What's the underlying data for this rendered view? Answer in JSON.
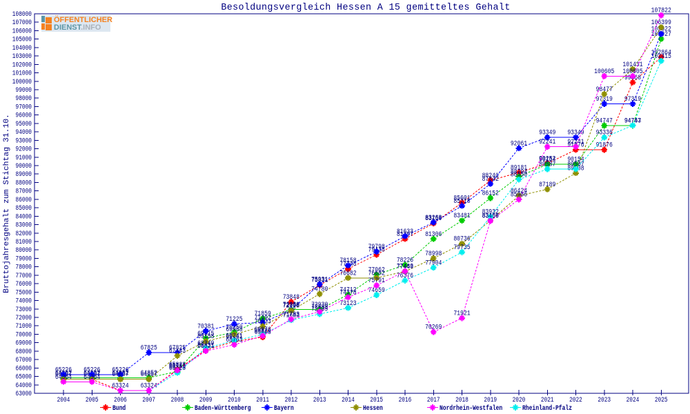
{
  "chart_data": {
    "type": "line",
    "title": "Besoldungsvergleich Hessen A 15 gemitteltes Gehalt",
    "ylabel": "Bruttojahresgehalt zum Stichtag 31.10.",
    "x": [
      2004,
      2005,
      2006,
      2007,
      2008,
      2009,
      2010,
      2011,
      2012,
      2013,
      2014,
      2015,
      2016,
      2017,
      2018,
      2019,
      2020,
      2021,
      2022,
      2023,
      2024,
      2025
    ],
    "ylim": [
      63000,
      108000
    ],
    "ytick_step": 1000,
    "grid": false,
    "legend_position": "bottom",
    "series": [
      {
        "name": "Bund",
        "color": "#ff0000",
        "values": [
          64657,
          64657,
          63324,
          63324,
          65823,
          68131,
          69141,
          69668,
          73848,
          75831,
          77748,
          79438,
          81297,
          83150,
          85601,
          88240,
          89181,
          90252,
          91876,
          91876,
          99868,
          102864
        ]
      },
      {
        "name": "Baden-Württemberg",
        "color": "#00cc00",
        "values": [
          64852,
          64852,
          64852,
          64852,
          65583,
          69515,
          70250,
          71859,
          72930,
          72930,
          74712,
          77062,
          78226,
          81306,
          83481,
          86152,
          88704,
          90154,
          90154,
          94747,
          94747,
          105027
        ]
      },
      {
        "name": "Bayern",
        "color": "#0000ff",
        "values": [
          65226,
          65226,
          65226,
          67825,
          67825,
          70381,
          71225,
          71402,
          72856,
          75931,
          78158,
          79798,
          81633,
          83268,
          85218,
          87842,
          92061,
          93349,
          93349,
          97319,
          97319,
          105622
        ]
      },
      {
        "name": "Hessen",
        "color": "#8f8f00",
        "values": [
          64657,
          64657,
          64657,
          64657,
          67443,
          69158,
          69988,
          70933,
          72798,
          74780,
          76682,
          76682,
          77449,
          78998,
          80736,
          83486,
          86424,
          87189,
          89108,
          98477,
          101431,
          106399
        ]
      },
      {
        "name": "Nordrhein-Westfalen",
        "color": "#ff00ff",
        "values": [
          64364,
          64364,
          63324,
          63324,
          65712,
          68021,
          68761,
          69826,
          71783,
          72689,
          74378,
          75791,
          77483,
          70269,
          71921,
          83450,
          85986,
          92241,
          92241,
          100605,
          100605,
          107822
        ]
      },
      {
        "name": "Rheinland-Pfalz",
        "color": "#00eeee",
        "values": [
          64364,
          64364,
          63324,
          63324,
          65423,
          68349,
          69241,
          69976,
          71683,
          72399,
          73123,
          74659,
          76376,
          77904,
          79735,
          83932,
          88350,
          89587,
          89587,
          93336,
          94763,
          102415
        ]
      }
    ],
    "draw_order": [
      0,
      1,
      2,
      3,
      5,
      4
    ],
    "legend": [
      {
        "series": 0,
        "x": 153
      },
      {
        "series": 1,
        "x": 272
      },
      {
        "series": 2,
        "x": 387
      },
      {
        "series": 3,
        "x": 516
      },
      {
        "series": 4,
        "x": 627
      },
      {
        "series": 5,
        "x": 747
      }
    ]
  },
  "logo": {
    "line1": "ÖFFENTLICHER",
    "line2_part1": "DIENST",
    "line2_part2": ".INFO"
  },
  "style": {
    "axis_color": "#000080",
    "text_color": "#000080",
    "background": "#ffffff"
  }
}
